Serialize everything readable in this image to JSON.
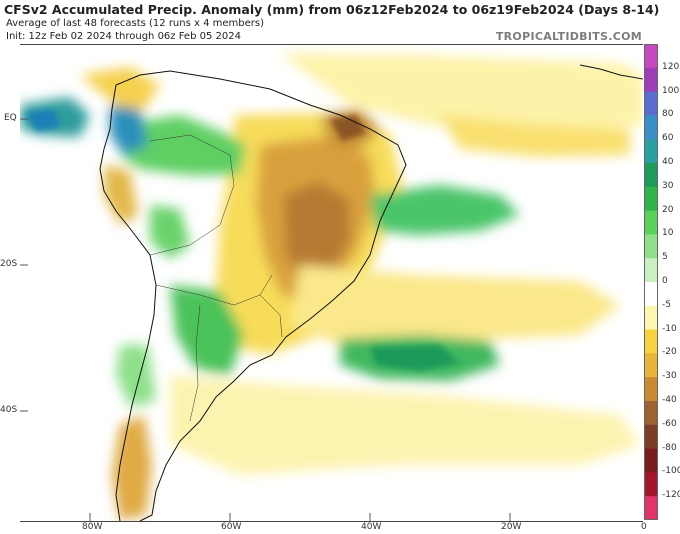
{
  "header": {
    "title": "CFSv2 Accumulated Precip. Anomaly (mm) from 06z12Feb2024 to 06z19Feb2024 (Days 8-14)",
    "subtitle": "Average of last 48 forecasts (12 runs x 4 members)",
    "init": "Init: 12z Feb 02 2024 through 06z Feb 05 2024",
    "brand": "TROPICALTIDBITS.COM"
  },
  "axes": {
    "lat_labels": [
      "EQ",
      "20S",
      "40S"
    ],
    "lon_labels": [
      "80W",
      "60W",
      "40W",
      "20W",
      "0"
    ]
  },
  "colorbar": {
    "labels": [
      "120",
      "100",
      "80",
      "60",
      "40",
      "30",
      "20",
      "10",
      "5",
      "0",
      "-5",
      "-10",
      "-20",
      "-30",
      "-40",
      "-60",
      "-80",
      "-100",
      "-120"
    ],
    "colors": [
      "#c54ac0",
      "#9c3fb7",
      "#5b6ed0",
      "#3b8fc7",
      "#2b9fa0",
      "#1f9a5a",
      "#2fb34a",
      "#5bd15a",
      "#8ee08a",
      "#c8f0c0",
      "#ffffff",
      "#fdf6b0",
      "#f5d23e",
      "#e9b43a",
      "#c88a33",
      "#9e6230",
      "#7a3f26",
      "#7a1c1c",
      "#a3162e",
      "#e0356a"
    ]
  }
}
